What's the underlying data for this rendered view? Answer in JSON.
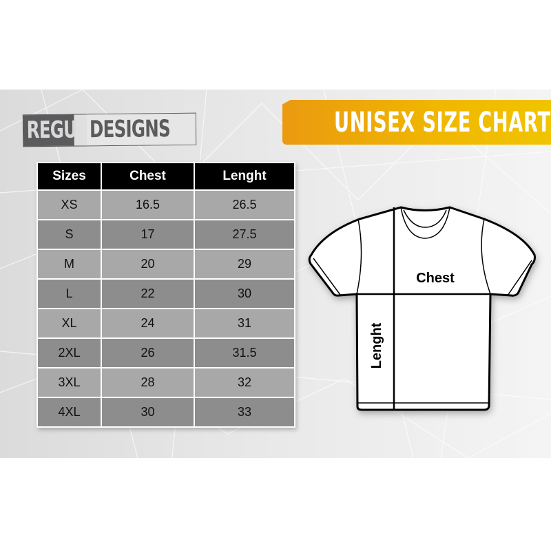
{
  "brand": {
    "part1": "REGU",
    "part2": "DESIGNS"
  },
  "banner": {
    "title": "UNISEX SIZE CHART",
    "color": "#f0b000"
  },
  "table": {
    "headers": [
      "Sizes",
      "Chest",
      "Lenght"
    ],
    "rows": [
      [
        "XS",
        "16.5",
        "26.5"
      ],
      [
        "S",
        "17",
        "27.5"
      ],
      [
        "M",
        "20",
        "29"
      ],
      [
        "L",
        "22",
        "30"
      ],
      [
        "XL",
        "24",
        "31"
      ],
      [
        "2XL",
        "26",
        "31.5"
      ],
      [
        "3XL",
        "28",
        "32"
      ],
      [
        "4XL",
        "30",
        "33"
      ]
    ]
  },
  "diagram": {
    "chest_label": "Chest",
    "length_label": "Lenght"
  }
}
